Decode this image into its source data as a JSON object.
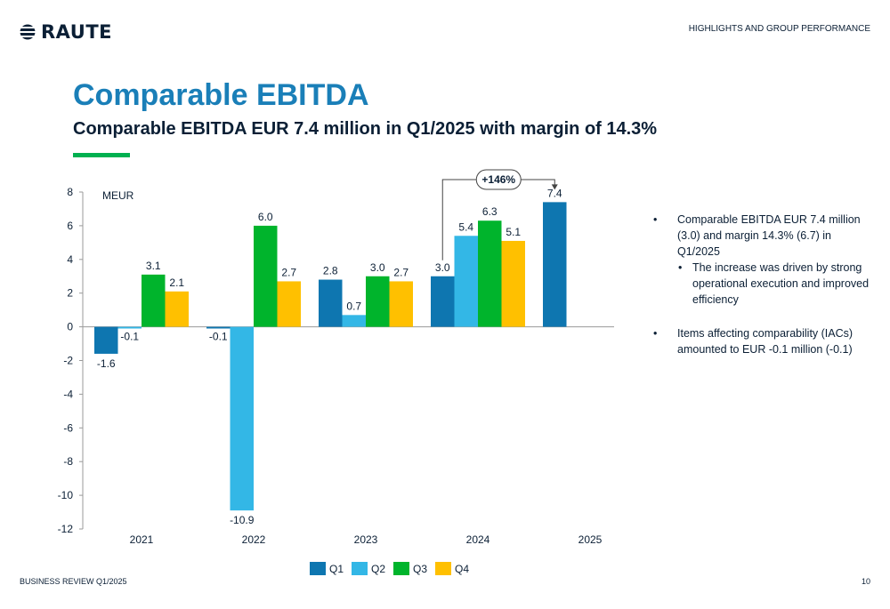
{
  "header": {
    "logo_text": "RAUTE",
    "section": "HIGHLIGHTS AND GROUP PERFORMANCE"
  },
  "title": "Comparable EBITDA",
  "subtitle": "Comparable EBITDA EUR 7.4 million in Q1/2025 with margin of 14.3%",
  "colors": {
    "accent": "#00b050",
    "title": "#1a7fb8",
    "text": "#0b1f35",
    "q1": "#0e76b0",
    "q2": "#33b7e6",
    "q3": "#00b42c",
    "q4": "#ffc000"
  },
  "chart_data": {
    "type": "bar",
    "ylabel": "MEUR",
    "ylim": [
      -12,
      8
    ],
    "yticks": [
      8,
      6,
      4,
      2,
      0,
      -2,
      -4,
      -6,
      -8,
      -10,
      -12
    ],
    "categories": [
      "2021",
      "2022",
      "2023",
      "2024",
      "2025"
    ],
    "series": [
      {
        "name": "Q1",
        "values": [
          -1.6,
          -0.1,
          2.8,
          3.0,
          7.4
        ],
        "labels": [
          "-1.6",
          "-0.1",
          "2.8",
          "3.0",
          "7.4"
        ]
      },
      {
        "name": "Q2",
        "values": [
          -0.1,
          -10.9,
          0.7,
          5.4,
          null
        ],
        "labels": [
          "-0.1",
          "-10.9",
          "0.7",
          "5.4",
          null
        ]
      },
      {
        "name": "Q3",
        "values": [
          3.1,
          6.0,
          3.0,
          6.3,
          null
        ],
        "labels": [
          "3.1",
          "6.0",
          "3.0",
          "6.3",
          null
        ]
      },
      {
        "name": "Q4",
        "values": [
          2.1,
          2.7,
          2.7,
          5.1,
          null
        ],
        "labels": [
          "2.1",
          "2.7",
          "2.7",
          "5.1",
          null
        ]
      }
    ],
    "annotation": {
      "text": "+146%",
      "from": {
        "category": "2024",
        "series": "Q1"
      },
      "to": {
        "category": "2025",
        "series": "Q1"
      }
    },
    "legend_position": "bottom",
    "grid": false
  },
  "bullets": [
    {
      "text": "Comparable EBITDA EUR 7.4 million (3.0) and margin 14.3% (6.7) in Q1/2025",
      "sub": [
        "The increase was driven by strong operational execution and improved efficiency"
      ]
    },
    {
      "text": "Items affecting comparability (IACs) amounted to EUR -0.1 million (-0.1)",
      "sub": []
    }
  ],
  "bullet_symbol": "•",
  "footer": {
    "left": "BUSINESS REVIEW Q1/2025",
    "page": "10"
  }
}
